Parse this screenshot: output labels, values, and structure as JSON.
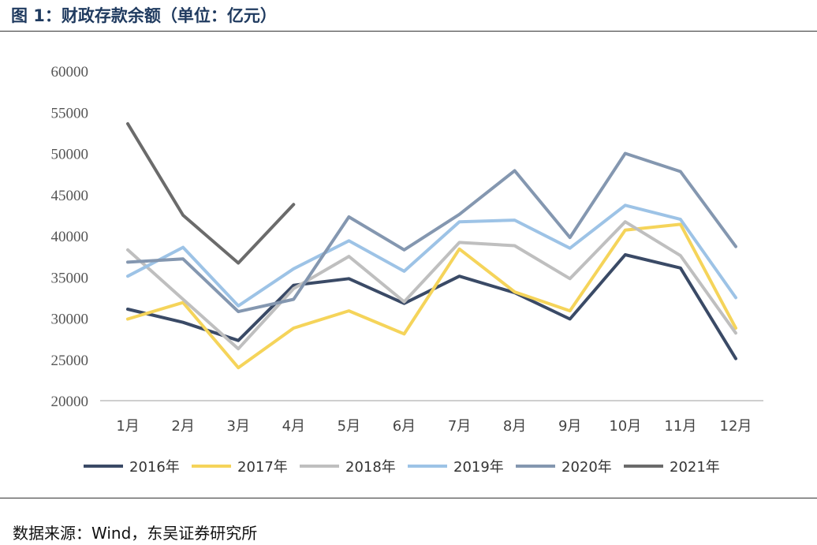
{
  "header": {
    "title": "图 1：财政存款余额（单位：亿元）"
  },
  "footer": {
    "source": "数据来源：Wind，东吴证券研究所"
  },
  "chart_data": {
    "type": "line",
    "title": "",
    "xlabel": "",
    "ylabel": "",
    "categories": [
      "1月",
      "2月",
      "3月",
      "4月",
      "5月",
      "6月",
      "7月",
      "8月",
      "9月",
      "10月",
      "11月",
      "12月"
    ],
    "ylim": [
      20000,
      60000
    ],
    "yticks": [
      "20000",
      "25000",
      "30000",
      "35000",
      "40000",
      "45000",
      "50000",
      "55000",
      "60000"
    ],
    "grid": false,
    "legend_position": "bottom",
    "series": [
      {
        "name": "2016年",
        "color": "#3a4a66",
        "values": [
          31100,
          29500,
          27300,
          34000,
          34800,
          31800,
          35100,
          33100,
          29900,
          37700,
          36100,
          25100
        ]
      },
      {
        "name": "2017年",
        "color": "#f5d45a",
        "values": [
          29900,
          31900,
          24000,
          28800,
          30900,
          28100,
          38400,
          33200,
          30900,
          40700,
          41400,
          28800
        ]
      },
      {
        "name": "2018年",
        "color": "#bfbfbf",
        "values": [
          38300,
          32300,
          26300,
          33600,
          37500,
          32000,
          39200,
          38800,
          34800,
          41700,
          37600,
          28200
        ]
      },
      {
        "name": "2019年",
        "color": "#9dc3e6",
        "values": [
          35100,
          38600,
          31500,
          36000,
          39400,
          35700,
          41700,
          41900,
          38500,
          43700,
          42000,
          32500
        ]
      },
      {
        "name": "2020年",
        "color": "#8497b0",
        "values": [
          36800,
          37200,
          30800,
          32300,
          42300,
          38300,
          42600,
          47900,
          39800,
          50000,
          47800,
          38700
        ]
      },
      {
        "name": "2021年",
        "color": "#6b6b6b",
        "values": [
          53600,
          42500,
          36700,
          43800,
          null,
          null,
          null,
          null,
          null,
          null,
          null,
          null
        ]
      }
    ]
  }
}
